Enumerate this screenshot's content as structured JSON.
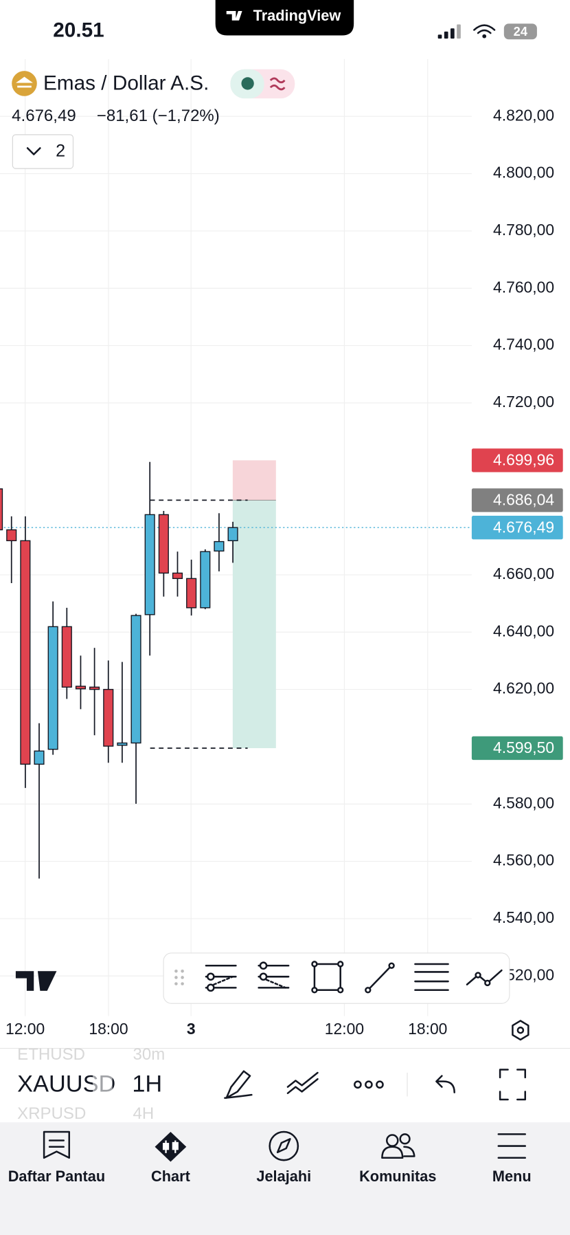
{
  "status_bar": {
    "time": "20.51",
    "battery": "24"
  },
  "app_badge": "TradingView",
  "header": {
    "symbol": "Emas / Dollar A.S.",
    "price": "4.676,49",
    "change": "−81,61 (−1,72%)",
    "indicators_count": "2"
  },
  "chart": {
    "type": "candlestick",
    "up_color": "#4db3d8",
    "down_color": "#e0434f",
    "ylim": [
      4506,
      4840
    ],
    "yticks": [
      {
        "value": 4820,
        "label": "4.820,00"
      },
      {
        "value": 4800,
        "label": "4.800,00"
      },
      {
        "value": 4780,
        "label": "4.780,00"
      },
      {
        "value": 4760,
        "label": "4.760,00"
      },
      {
        "value": 4740,
        "label": "4.740,00"
      },
      {
        "value": 4720,
        "label": "4.720,00"
      },
      {
        "value": 4660,
        "label": "4.660,00"
      },
      {
        "value": 4640,
        "label": "4.640,00"
      },
      {
        "value": 4620,
        "label": "4.620,00"
      },
      {
        "value": 4580,
        "label": "4.580,00"
      },
      {
        "value": 4560,
        "label": "4.560,00"
      },
      {
        "value": 4540,
        "label": "4.540,00"
      },
      {
        "value": 4520,
        "label": "4.520,00"
      }
    ],
    "candles": [
      {
        "open": 4690,
        "high": 4692,
        "low": 4675.7,
        "close": 4675.7
      },
      {
        "open": 4675.7,
        "high": 4680.4,
        "low": 4657.1,
        "close": 4671.9
      },
      {
        "open": 4671.9,
        "high": 4680.4,
        "low": 4585.6,
        "close": 4593.9
      },
      {
        "open": 4593.9,
        "high": 4608.2,
        "low": 4554.0,
        "close": 4598.5
      },
      {
        "open": 4599.1,
        "high": 4650.7,
        "low": 4597.2,
        "close": 4641.9
      },
      {
        "open": 4641.9,
        "high": 4648.5,
        "low": 4616.7,
        "close": 4620.8
      },
      {
        "open": 4621.1,
        "high": 4631.8,
        "low": 4613.1,
        "close": 4620.2
      },
      {
        "open": 4620.8,
        "high": 4634.5,
        "low": 4604.0,
        "close": 4620.0
      },
      {
        "open": 4620.0,
        "high": 4630.1,
        "low": 4594.4,
        "close": 4600.2
      },
      {
        "open": 4600.5,
        "high": 4629.6,
        "low": 4594.4,
        "close": 4601.3
      },
      {
        "open": 4601.3,
        "high": 4646.4,
        "low": 4580.1,
        "close": 4645.8
      },
      {
        "open": 4646.1,
        "high": 4699.4,
        "low": 4631.8,
        "close": 4681.0
      },
      {
        "open": 4681.0,
        "high": 4682.3,
        "low": 4652.4,
        "close": 4660.6
      },
      {
        "open": 4660.6,
        "high": 4668.1,
        "low": 4652.4,
        "close": 4658.7
      },
      {
        "open": 4658.7,
        "high": 4665.3,
        "low": 4645.8,
        "close": 4648.5
      },
      {
        "open": 4648.5,
        "high": 4668.9,
        "low": 4648.0,
        "close": 4668.1
      },
      {
        "open": 4668.3,
        "high": 4681.5,
        "low": 4661.2,
        "close": 4671.6
      },
      {
        "open": 4671.9,
        "high": 4678.5,
        "low": 4664.2,
        "close": 4676.49
      }
    ],
    "time_labels": [
      "12:00",
      "18:00",
      "3",
      "12:00",
      "18:00"
    ],
    "price_tags": [
      {
        "value": 4699.96,
        "label": "4.699,96",
        "color": "#e0434f"
      },
      {
        "value": 4686.04,
        "label": "4.686,04",
        "color": "#808080"
      },
      {
        "value": 4676.49,
        "label": "4.676,49",
        "color": "#4db3d8"
      },
      {
        "value": 4599.5,
        "label": "4.599,50",
        "color": "#3e9a7a"
      }
    ]
  },
  "symbol_bar": {
    "symbol": "XAUUSD",
    "interval": "1H",
    "previous": {
      "symbol": "ETHUSD",
      "interval": "30m"
    },
    "next": {
      "symbol": "XRPUSD",
      "interval": "4H"
    }
  },
  "nav": [
    "Daftar Pantau",
    "Chart",
    "Jelajahi",
    "Komunitas",
    "Menu"
  ]
}
